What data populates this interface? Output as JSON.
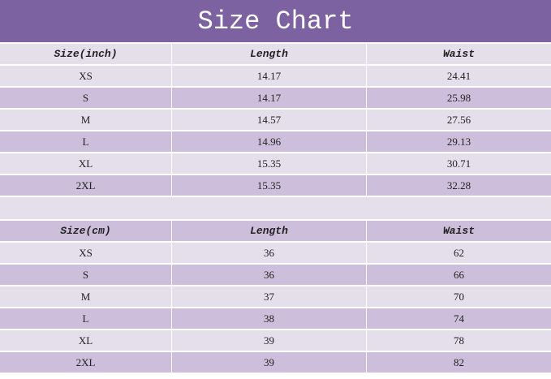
{
  "title": "Size Chart",
  "tables": [
    {
      "headers": [
        "Size(inch)",
        "Length",
        "Waist"
      ],
      "rows": [
        [
          "XS",
          "14.17",
          "24.41"
        ],
        [
          "S",
          "14.17",
          "25.98"
        ],
        [
          "M",
          "14.57",
          "27.56"
        ],
        [
          "L",
          "14.96",
          "29.13"
        ],
        [
          "XL",
          "15.35",
          "30.71"
        ],
        [
          "2XL",
          "15.35",
          "32.28"
        ]
      ]
    },
    {
      "headers": [
        "Size(cm)",
        "Length",
        "Waist"
      ],
      "rows": [
        [
          "XS",
          "36",
          "62"
        ],
        [
          "S",
          "36",
          "66"
        ],
        [
          "M",
          "37",
          "70"
        ],
        [
          "L",
          "38",
          "74"
        ],
        [
          "XL",
          "39",
          "78"
        ],
        [
          "2XL",
          "39",
          "82"
        ]
      ]
    }
  ],
  "colors": {
    "header": "#7d62a2",
    "row_light": "#e5deeb",
    "row_dark": "#cdbfdb"
  }
}
